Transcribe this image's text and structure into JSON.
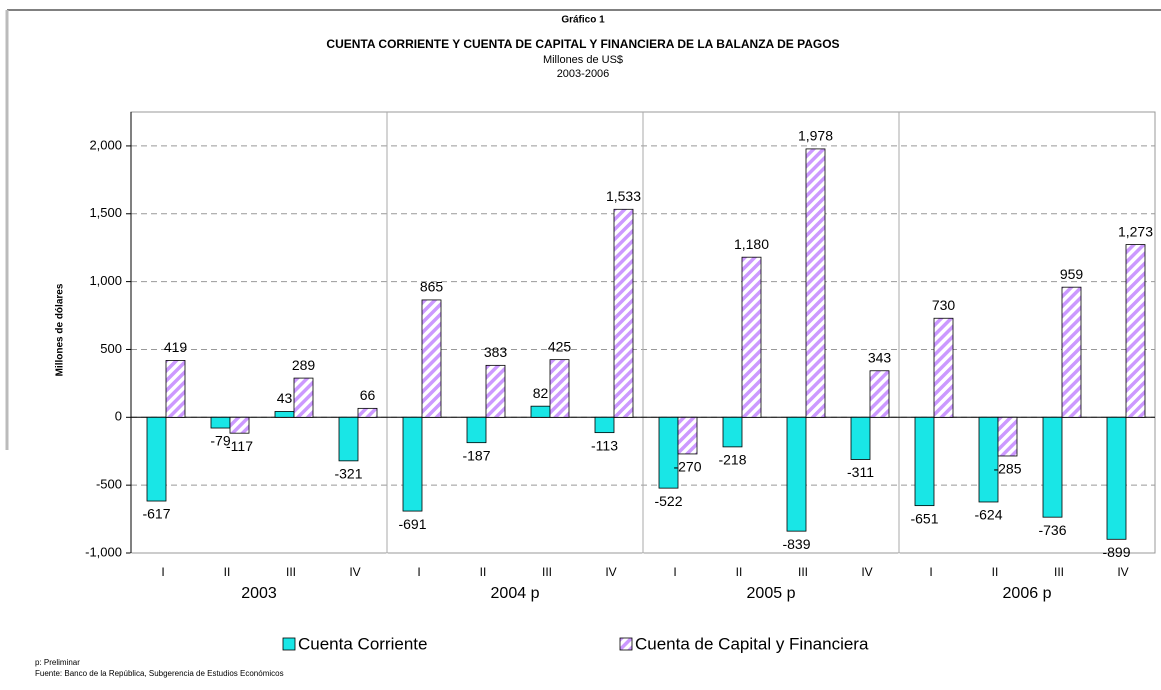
{
  "chart_data": {
    "type": "bar",
    "pretitle": "Gráfico 1",
    "title": "CUENTA CORRIENTE Y CUENTA DE CAPITAL Y FINANCIERA DE LA BALANZA DE PAGOS",
    "subtitle": "Millones de US$",
    "period": "2003-2006",
    "y_label": "Millones de dólares",
    "categories": [
      "I",
      "II",
      "III",
      "IV",
      "I",
      "II",
      "III",
      "IV",
      "I",
      "II",
      "III",
      "IV",
      "I",
      "II",
      "III",
      "IV"
    ],
    "groups": [
      "2003",
      "2004 p",
      "2005 p",
      "2006 p"
    ],
    "series": [
      {
        "name": "Cuenta Corriente",
        "color": "#19e6e6",
        "values": [
          -617,
          -79,
          43,
          -321,
          -691,
          -187,
          82,
          -113,
          -522,
          -218,
          -839,
          -311,
          -651,
          -624,
          -736,
          -899
        ],
        "value_labels": [
          "-617",
          "-79",
          "43",
          "-321",
          "-691",
          "-187",
          "82",
          "-113",
          "-522",
          "-218",
          "-839",
          "-311",
          "-651",
          "-624",
          "-736",
          "-899"
        ]
      },
      {
        "name": "Cuenta de Capital y Financiera",
        "color": "#cc99ff",
        "values": [
          419,
          -117,
          289,
          66,
          865,
          383,
          425,
          1533,
          -270,
          1180,
          1978,
          343,
          730,
          -285,
          959,
          1273
        ],
        "value_labels": [
          "419",
          "-117",
          "289",
          "66",
          "865",
          "383",
          "425",
          "1,533",
          "-270",
          "1,180",
          "1,978",
          "343",
          "730",
          "-285",
          "959",
          "1,273"
        ]
      }
    ],
    "ylim": [
      -1000,
      2250
    ],
    "yticks": [
      {
        "value": -1000,
        "label": "-1,000"
      },
      -500,
      0,
      500,
      {
        "value": 1000,
        "label": "1,000"
      },
      {
        "value": 1500,
        "label": "1,500"
      },
      {
        "value": 2000,
        "label": "2,000"
      }
    ],
    "grid": true,
    "notes": [
      "p:  Preliminar",
      "Fuente: Banco de la República, Subgerencia de Estudios Económicos"
    ]
  }
}
